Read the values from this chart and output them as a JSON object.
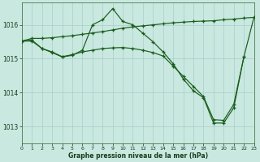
{
  "xlabel": "Graphe pression niveau de la mer (hPa)",
  "bg_color": "#c8e8e0",
  "grid_color": "#aacccc",
  "line_color": "#1a5c1a",
  "ylim": [
    1012.5,
    1016.65
  ],
  "xlim": [
    0,
    23
  ],
  "yticks": [
    1013,
    1014,
    1015,
    1016
  ],
  "xticks": [
    0,
    1,
    2,
    3,
    4,
    5,
    6,
    7,
    8,
    9,
    10,
    11,
    12,
    13,
    14,
    15,
    16,
    17,
    18,
    19,
    20,
    21,
    22,
    23
  ],
  "s1_x": [
    0,
    1,
    2,
    3,
    4,
    5,
    6,
    7,
    8,
    9,
    10,
    11,
    12,
    13,
    14,
    15,
    16,
    17,
    18,
    19,
    20,
    21,
    22,
    23
  ],
  "s1_y": [
    1015.52,
    1015.6,
    1015.6,
    1015.62,
    1015.65,
    1015.68,
    1015.72,
    1015.76,
    1015.8,
    1015.85,
    1015.9,
    1015.94,
    1015.97,
    1016.0,
    1016.03,
    1016.06,
    1016.08,
    1016.1,
    1016.11,
    1016.12,
    1016.15,
    1016.17,
    1016.2,
    1016.22
  ],
  "s2_x": [
    0,
    1,
    2,
    3,
    4,
    5,
    6,
    7,
    8,
    9,
    10,
    11,
    12,
    13,
    14,
    15,
    16,
    17,
    18,
    19,
    20,
    21,
    22
  ],
  "s2_y": [
    1015.52,
    1015.55,
    1015.3,
    1015.18,
    1015.05,
    1015.1,
    1015.25,
    1016.0,
    1016.15,
    1016.48,
    1016.1,
    1016.0,
    1015.75,
    1015.5,
    1015.2,
    1014.85,
    1014.4,
    1014.05,
    1013.85,
    1013.1,
    1013.1,
    1013.55,
    1015.05
  ],
  "s3_x": [
    0,
    1,
    2,
    3,
    4,
    5,
    6,
    7,
    8,
    9,
    10,
    11,
    12,
    13,
    14,
    15,
    16,
    17,
    18,
    19,
    20,
    21,
    22,
    23
  ],
  "s3_y": [
    1015.52,
    1015.52,
    1015.3,
    1015.2,
    1015.06,
    1015.12,
    1015.2,
    1015.25,
    1015.3,
    1015.32,
    1015.33,
    1015.3,
    1015.25,
    1015.18,
    1015.08,
    1014.78,
    1014.48,
    1014.18,
    1013.88,
    1013.2,
    1013.18,
    1013.65,
    1015.05,
    1016.22
  ]
}
